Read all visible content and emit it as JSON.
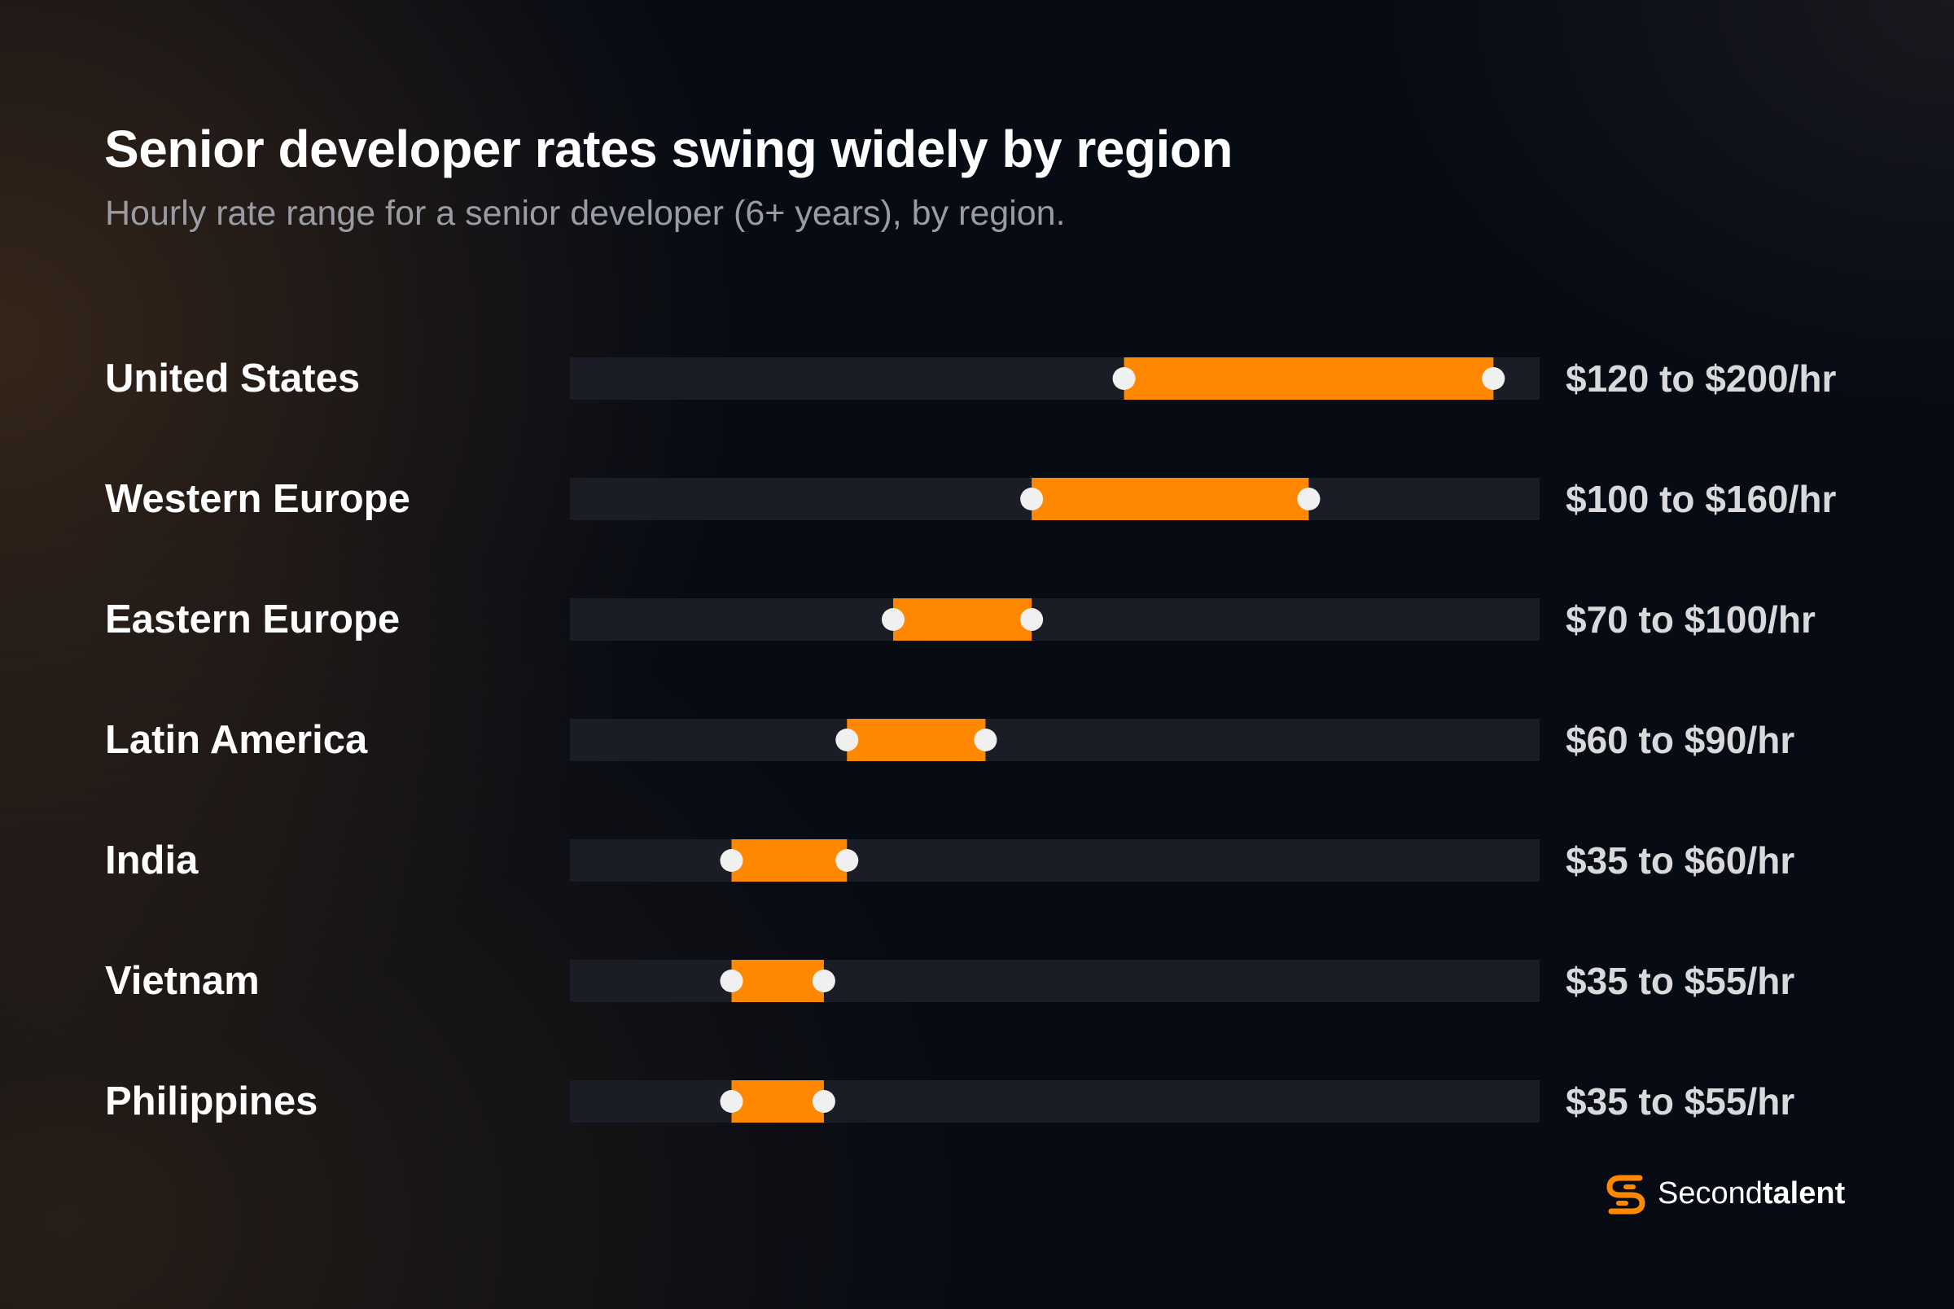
{
  "header": {
    "title": "Senior developer rates swing widely by region",
    "subtitle": "Hourly rate range for a senior developer (6+ years), by region."
  },
  "chart_data": {
    "type": "range-bar",
    "title": "Senior developer rates swing widely by region",
    "subtitle": "Hourly rate range for a senior developer (6+ years), by region.",
    "unit": "USD per hour",
    "xlim": [
      0,
      210
    ],
    "grid": false,
    "legend": "none",
    "categories": [
      "United States",
      "Western Europe",
      "Eastern Europe",
      "Latin America",
      "India",
      "Vietnam",
      "Philippines"
    ],
    "ranges": [
      {
        "label": "United States",
        "low": 120,
        "high": 200,
        "text": "$120 to $200/hr"
      },
      {
        "label": "Western Europe",
        "low": 100,
        "high": 160,
        "text": "$100 to $160/hr"
      },
      {
        "label": "Eastern Europe",
        "low": 70,
        "high": 100,
        "text": "$70 to $100/hr"
      },
      {
        "label": "Latin America",
        "low": 60,
        "high": 90,
        "text": "$60 to $90/hr"
      },
      {
        "label": "India",
        "low": 35,
        "high": 60,
        "text": "$35 to $60/hr"
      },
      {
        "label": "Vietnam",
        "low": 35,
        "high": 55,
        "text": "$35 to $55/hr"
      },
      {
        "label": "Philippines",
        "low": 35,
        "high": 55,
        "text": "$35 to $55/hr"
      }
    ],
    "colors": {
      "range": "#ff8800",
      "track": "#1a1d25",
      "endpoint": "#f0f0f0",
      "label": "#ffffff",
      "value_text": "#d9d9dc"
    }
  },
  "brand": {
    "icon": "secondtalent-logo-icon",
    "name_regular": "Second",
    "name_bold": "talent"
  }
}
